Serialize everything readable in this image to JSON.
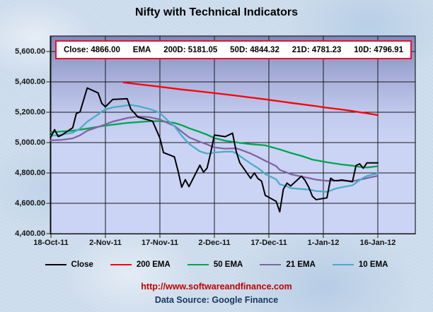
{
  "title": "Nifty with Technical Indicators",
  "info_box": {
    "close": "Close: 4866.00",
    "ema": "EMA",
    "d200": "200D: 5181.05",
    "d50": "50D: 4844.32",
    "d21": "21D: 4781.23",
    "d10": "10D: 4796.91"
  },
  "footer": {
    "website": "http://www.softwareandfinance.com",
    "data_source": "Data Source: Google Finance"
  },
  "colors": {
    "website_text": "#c00000",
    "data_source_text": "#17375e",
    "info_box_border": "#e8112d",
    "grid_line": "#1a1a1a",
    "plot_wall_top": "#7e87b6",
    "plot_wall_bottom": "#ccd4f6"
  },
  "chart_data": {
    "type": "line",
    "title": "Nifty with Technical Indicators",
    "grid": true,
    "legend_position": "bottom",
    "x_axis": {
      "unit": "calendar days since 18-Oct-2011",
      "max_data": 90,
      "right_padding_days": 10,
      "ticks": [
        {
          "pos": 0,
          "label": "18-Oct-11"
        },
        {
          "pos": 15,
          "label": "2-Nov-11"
        },
        {
          "pos": 30,
          "label": "17-Nov-11"
        },
        {
          "pos": 45,
          "label": "2-Dec-11"
        },
        {
          "pos": 60,
          "label": "17-Dec-11"
        },
        {
          "pos": 75,
          "label": "1-Jan-12"
        },
        {
          "pos": 90,
          "label": "16-Jan-12"
        }
      ]
    },
    "y_axis": {
      "min": 4400,
      "max": 5600,
      "step": 200,
      "ticks": [
        {
          "value": 5600,
          "label": "5,600.00"
        },
        {
          "value": 5400,
          "label": "5,400.00"
        },
        {
          "value": 5200,
          "label": "5,200.00"
        },
        {
          "value": 5000,
          "label": "5,000.00"
        },
        {
          "value": 4800,
          "label": "4,800.00"
        },
        {
          "value": 4600,
          "label": "4,600.00"
        },
        {
          "value": 4400,
          "label": "4,400.00"
        }
      ]
    },
    "series": [
      {
        "name": "Close",
        "color": "#000000",
        "width": 2,
        "last_value": 4866.0,
        "points": [
          [
            0,
            5038
          ],
          [
            1,
            5085
          ],
          [
            2,
            5040
          ],
          [
            3,
            5050
          ],
          [
            6,
            5098
          ],
          [
            7,
            5192
          ],
          [
            8,
            5202
          ],
          [
            10,
            5360
          ],
          [
            13,
            5327
          ],
          [
            14,
            5258
          ],
          [
            15,
            5236
          ],
          [
            17,
            5284
          ],
          [
            21,
            5289
          ],
          [
            22,
            5221
          ],
          [
            24,
            5168
          ],
          [
            27,
            5148
          ],
          [
            28,
            5141
          ],
          [
            30,
            5030
          ],
          [
            31,
            4934
          ],
          [
            34,
            4906
          ],
          [
            35,
            4812
          ],
          [
            36,
            4706
          ],
          [
            37,
            4756
          ],
          [
            38,
            4710
          ],
          [
            41,
            4851
          ],
          [
            42,
            4805
          ],
          [
            43,
            4832
          ],
          [
            44,
            4936
          ],
          [
            45,
            5050
          ],
          [
            48,
            5039
          ],
          [
            50,
            5062
          ],
          [
            51,
            4943
          ],
          [
            52,
            4867
          ],
          [
            55,
            4764
          ],
          [
            56,
            4800
          ],
          [
            57,
            4763
          ],
          [
            58,
            4746
          ],
          [
            59,
            4652
          ],
          [
            62,
            4613
          ],
          [
            63,
            4544
          ],
          [
            64,
            4693
          ],
          [
            65,
            4733
          ],
          [
            66,
            4714
          ],
          [
            69,
            4779
          ],
          [
            70,
            4750
          ],
          [
            71,
            4705
          ],
          [
            72,
            4646
          ],
          [
            73,
            4624
          ],
          [
            76,
            4636
          ],
          [
            77,
            4765
          ],
          [
            78,
            4749
          ],
          [
            79,
            4749
          ],
          [
            80,
            4754
          ],
          [
            83,
            4742
          ],
          [
            84,
            4849
          ],
          [
            85,
            4860
          ],
          [
            86,
            4831
          ],
          [
            87,
            4866
          ],
          [
            90,
            4866
          ]
        ]
      },
      {
        "name": "200 EMA",
        "color": "#ff0000",
        "width": 2.3,
        "last_value": 5181.05,
        "points": [
          [
            20,
            5396
          ],
          [
            25,
            5382
          ],
          [
            30,
            5368
          ],
          [
            36,
            5350
          ],
          [
            41,
            5337
          ],
          [
            45,
            5326
          ],
          [
            50,
            5312
          ],
          [
            55,
            5297
          ],
          [
            59,
            5285
          ],
          [
            63,
            5272
          ],
          [
            66,
            5262
          ],
          [
            70,
            5250
          ],
          [
            73,
            5240
          ],
          [
            76,
            5230
          ],
          [
            80,
            5218
          ],
          [
            83,
            5208
          ],
          [
            85,
            5200
          ],
          [
            87,
            5193
          ],
          [
            90,
            5181
          ]
        ]
      },
      {
        "name": "50 EMA",
        "color": "#00a550",
        "width": 2.3,
        "last_value": 4844.32,
        "points": [
          [
            0,
            5068
          ],
          [
            6,
            5078
          ],
          [
            10,
            5092
          ],
          [
            15,
            5112
          ],
          [
            21,
            5130
          ],
          [
            27,
            5140
          ],
          [
            30,
            5142
          ],
          [
            34,
            5130
          ],
          [
            36,
            5115
          ],
          [
            38,
            5095
          ],
          [
            41,
            5070
          ],
          [
            43,
            5052
          ],
          [
            45,
            5030
          ],
          [
            48,
            5012
          ],
          [
            50,
            5005
          ],
          [
            52,
            4998
          ],
          [
            55,
            4990
          ],
          [
            59,
            4982
          ],
          [
            63,
            4955
          ],
          [
            66,
            4932
          ],
          [
            69,
            4912
          ],
          [
            72,
            4888
          ],
          [
            76,
            4870
          ],
          [
            80,
            4856
          ],
          [
            83,
            4848
          ],
          [
            85,
            4840
          ],
          [
            87,
            4836
          ],
          [
            90,
            4844
          ]
        ]
      },
      {
        "name": "21 EMA",
        "color": "#8064a2",
        "width": 2.3,
        "last_value": 4781.23,
        "points": [
          [
            0,
            5015
          ],
          [
            3,
            5018
          ],
          [
            6,
            5028
          ],
          [
            8,
            5048
          ],
          [
            10,
            5078
          ],
          [
            14,
            5112
          ],
          [
            17,
            5138
          ],
          [
            21,
            5162
          ],
          [
            24,
            5172
          ],
          [
            27,
            5168
          ],
          [
            30,
            5152
          ],
          [
            34,
            5110
          ],
          [
            36,
            5072
          ],
          [
            38,
            5035
          ],
          [
            41,
            5005
          ],
          [
            43,
            4988
          ],
          [
            45,
            4968
          ],
          [
            48,
            4960
          ],
          [
            50,
            4962
          ],
          [
            51,
            4963
          ],
          [
            52,
            4955
          ],
          [
            55,
            4928
          ],
          [
            57,
            4905
          ],
          [
            59,
            4880
          ],
          [
            62,
            4845
          ],
          [
            63,
            4820
          ],
          [
            65,
            4802
          ],
          [
            66,
            4792
          ],
          [
            69,
            4776
          ],
          [
            71,
            4766
          ],
          [
            73,
            4756
          ],
          [
            76,
            4748
          ],
          [
            78,
            4750
          ],
          [
            80,
            4750
          ],
          [
            83,
            4746
          ],
          [
            84,
            4750
          ],
          [
            85,
            4756
          ],
          [
            86,
            4760
          ],
          [
            87,
            4766
          ],
          [
            90,
            4781
          ]
        ]
      },
      {
        "name": "10 EMA",
        "color": "#4bacc6",
        "width": 2.3,
        "last_value": 4796.91,
        "points": [
          [
            0,
            5045
          ],
          [
            3,
            5052
          ],
          [
            6,
            5065
          ],
          [
            8,
            5092
          ],
          [
            10,
            5138
          ],
          [
            13,
            5185
          ],
          [
            14,
            5205
          ],
          [
            15,
            5218
          ],
          [
            17,
            5232
          ],
          [
            21,
            5245
          ],
          [
            22,
            5248
          ],
          [
            24,
            5240
          ],
          [
            27,
            5222
          ],
          [
            28,
            5215
          ],
          [
            30,
            5195
          ],
          [
            32,
            5150
          ],
          [
            34,
            5108
          ],
          [
            36,
            5045
          ],
          [
            38,
            4992
          ],
          [
            41,
            4942
          ],
          [
            43,
            4928
          ],
          [
            44,
            4930
          ],
          [
            45,
            4935
          ],
          [
            48,
            4940
          ],
          [
            50,
            4940
          ],
          [
            51,
            4930
          ],
          [
            52,
            4912
          ],
          [
            55,
            4862
          ],
          [
            57,
            4832
          ],
          [
            58,
            4815
          ],
          [
            59,
            4792
          ],
          [
            62,
            4758
          ],
          [
            63,
            4725
          ],
          [
            65,
            4712
          ],
          [
            66,
            4700
          ],
          [
            69,
            4694
          ],
          [
            71,
            4690
          ],
          [
            72,
            4686
          ],
          [
            73,
            4681
          ],
          [
            76,
            4676
          ],
          [
            77,
            4684
          ],
          [
            78,
            4694
          ],
          [
            80,
            4706
          ],
          [
            83,
            4718
          ],
          [
            84,
            4735
          ],
          [
            85,
            4752
          ],
          [
            86,
            4768
          ],
          [
            87,
            4780
          ],
          [
            90,
            4797
          ]
        ]
      }
    ]
  }
}
